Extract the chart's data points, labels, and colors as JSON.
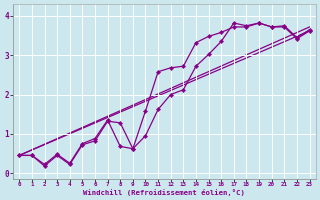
{
  "title": "",
  "xlabel": "Windchill (Refroidissement éolien,°C)",
  "ylabel": "",
  "bg_color": "#cce8ee",
  "line_color": "#880088",
  "marker_color": "#880088",
  "xlim": [
    -0.5,
    23.5
  ],
  "ylim": [
    -0.15,
    4.3
  ],
  "xticks": [
    0,
    1,
    2,
    3,
    4,
    5,
    6,
    7,
    8,
    9,
    10,
    11,
    12,
    13,
    14,
    15,
    16,
    17,
    18,
    19,
    20,
    21,
    22,
    23
  ],
  "yticks": [
    0,
    1,
    2,
    3,
    4
  ],
  "data_series": [
    {
      "x": [
        0,
        1,
        2,
        3,
        4,
        5,
        6,
        7,
        8,
        9,
        10,
        11,
        12,
        13,
        14,
        15,
        16,
        17,
        18,
        19,
        20,
        21,
        22,
        23
      ],
      "y": [
        0.45,
        0.45,
        0.18,
        0.45,
        0.22,
        0.72,
        0.82,
        1.32,
        1.28,
        0.62,
        0.95,
        1.62,
        2.0,
        2.12,
        2.72,
        3.02,
        3.35,
        3.82,
        3.75,
        3.82,
        3.72,
        3.75,
        3.45,
        3.65
      ],
      "has_markers": true
    },
    {
      "x": [
        0,
        1,
        2,
        3,
        4,
        5,
        6,
        7,
        8,
        9,
        10,
        11,
        12,
        13,
        14,
        15,
        16,
        17,
        18,
        19,
        20,
        21,
        22,
        23
      ],
      "y": [
        0.45,
        0.45,
        0.22,
        0.48,
        0.25,
        0.75,
        0.88,
        1.35,
        0.68,
        0.62,
        1.58,
        2.58,
        2.68,
        2.72,
        3.32,
        3.48,
        3.58,
        3.72,
        3.72,
        3.82,
        3.72,
        3.72,
        3.42,
        3.62
      ],
      "has_markers": true
    },
    {
      "x": [
        0,
        23
      ],
      "y": [
        0.45,
        3.62
      ],
      "has_markers": false
    },
    {
      "x": [
        0,
        23
      ],
      "y": [
        0.45,
        3.72
      ],
      "has_markers": false
    }
  ]
}
